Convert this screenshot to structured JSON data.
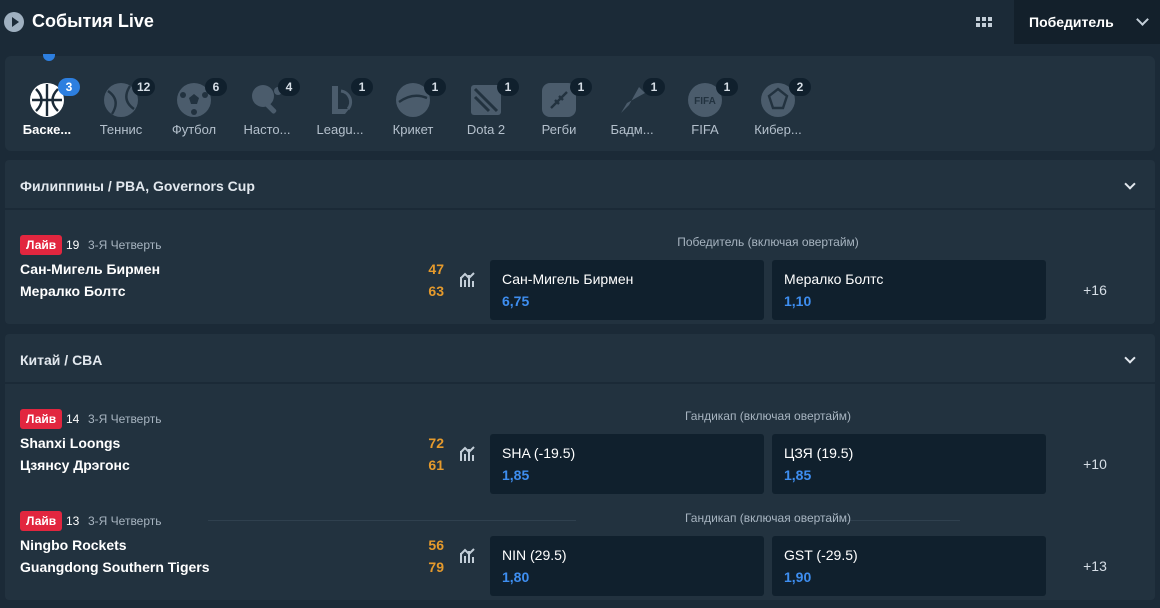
{
  "header": {
    "title": "События Live",
    "market_select": "Победитель"
  },
  "sports": [
    {
      "name": "Баске...",
      "count": "3",
      "icon": "basketball-icon",
      "active": true
    },
    {
      "name": "Теннис",
      "count": "12",
      "icon": "tennis-icon"
    },
    {
      "name": "Футбол",
      "count": "6",
      "icon": "football-icon"
    },
    {
      "name": "Насто...",
      "count": "4",
      "icon": "table-tennis-icon"
    },
    {
      "name": "Leagu...",
      "count": "1",
      "icon": "league-of-legends-icon"
    },
    {
      "name": "Крикет",
      "count": "1",
      "icon": "cricket-icon"
    },
    {
      "name": "Dota 2",
      "count": "1",
      "icon": "dota2-icon"
    },
    {
      "name": "Регби",
      "count": "1",
      "icon": "rugby-icon"
    },
    {
      "name": "Бадм...",
      "count": "1",
      "icon": "badminton-icon"
    },
    {
      "name": "FIFA",
      "count": "1",
      "icon": "fifa-icon"
    },
    {
      "name": "Кибер...",
      "count": "2",
      "icon": "cyber-football-icon"
    }
  ],
  "leagues": [
    {
      "name": "Филиппины / PBA, Governors Cup",
      "events": [
        {
          "live": "Лайв",
          "minute": "19",
          "period": "3-Я Четверть",
          "market": "Победитель (включая овертайм)",
          "team1": "Сан-Мигель Бирмен",
          "score1": "47",
          "team2": "Мералко Болтс",
          "score2": "63",
          "odd1_label": "Сан-Мигель Бирмен",
          "odd1_value": "6,75",
          "odd2_label": "Мералко Болтс",
          "odd2_value": "1,10",
          "more": "+16"
        }
      ]
    },
    {
      "name": "Китай / CBA",
      "events": [
        {
          "live": "Лайв",
          "minute": "14",
          "period": "3-Я Четверть",
          "market": "Гандикап (включая овертайм)",
          "team1": "Shanxi Loongs",
          "score1": "72",
          "team2": "Цзянсу Дрэгонс",
          "score2": "61",
          "odd1_label": "SHA (-19.5)",
          "odd1_value": "1,85",
          "odd2_label": "ЦЗЯ (19.5)",
          "odd2_value": "1,85",
          "more": "+10"
        },
        {
          "live": "Лайв",
          "minute": "13",
          "period": "3-Я Четверть",
          "market": "Гандикап (включая овертайм)",
          "team1": "Ningbo Rockets",
          "score1": "56",
          "team2": "Guangdong Southern Tigers",
          "score2": "79",
          "odd1_label": "NIN (29.5)",
          "odd1_value": "1,80",
          "odd2_label": "GST (-29.5)",
          "odd2_value": "1,90",
          "more": "+13"
        }
      ]
    }
  ],
  "colors": {
    "accent": "#2d7fe0",
    "live_badge": "#e2263f",
    "score": "#e59a2c",
    "odds": "#3e8ef0"
  }
}
